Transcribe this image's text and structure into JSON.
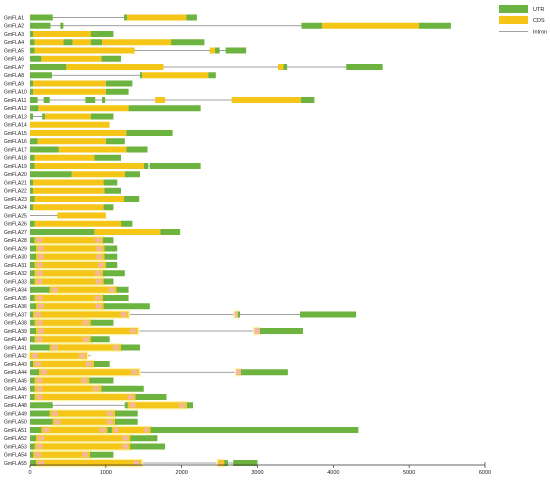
{
  "legend": {
    "utr_label": "UTR",
    "cds_label": "CDS",
    "intron_label": "Intron"
  },
  "colors": {
    "utr": "#6db33f",
    "cds": "#f5c518",
    "intron": "#808080",
    "domain_pink": "#f4b6a6",
    "domain_halo": "#fbf4a8"
  },
  "x_axis": {
    "min": 0,
    "max": 6000,
    "ticks": [
      0,
      1000,
      2000,
      3000,
      4000,
      5000,
      6000
    ],
    "tick_labels": [
      "0",
      "1000",
      "2000",
      "3000",
      "4000",
      "5000",
      "6000"
    ]
  },
  "genes": [
    {
      "name": "GmFLA1",
      "start": 0,
      "end": 2200,
      "utr": [
        [
          0,
          300
        ],
        [
          1240,
          1280
        ],
        [
          2060,
          2200
        ]
      ],
      "cds": [
        [
          1280,
          2060
        ]
      ],
      "domains": []
    },
    {
      "name": "GmFLA2",
      "start": 0,
      "end": 5550,
      "utr": [
        [
          0,
          270
        ],
        [
          400,
          440
        ],
        [
          3580,
          3850
        ],
        [
          5130,
          5550
        ]
      ],
      "cds": [
        [
          3850,
          5130
        ]
      ],
      "domains": []
    },
    {
      "name": "GmFLA3",
      "start": 0,
      "end": 1100,
      "utr": [
        [
          0,
          40
        ],
        [
          800,
          1100
        ]
      ],
      "cds": [
        [
          40,
          800
        ]
      ],
      "domains": []
    },
    {
      "name": "GmFLA4",
      "start": 0,
      "end": 2300,
      "utr": [
        [
          0,
          60
        ],
        [
          440,
          560
        ],
        [
          800,
          950
        ],
        [
          1860,
          2300
        ]
      ],
      "cds": [
        [
          60,
          440
        ],
        [
          560,
          800
        ],
        [
          950,
          1860
        ]
      ],
      "domains": []
    },
    {
      "name": "GmFLA5",
      "start": 0,
      "end": 2850,
      "utr": [
        [
          0,
          60
        ],
        [
          2440,
          2500
        ],
        [
          2580,
          2850
        ]
      ],
      "cds": [
        [
          60,
          1380
        ],
        [
          2370,
          2440
        ]
      ],
      "domains": []
    },
    {
      "name": "GmFLA6",
      "start": 0,
      "end": 1200,
      "utr": [
        [
          0,
          150
        ],
        [
          940,
          1200
        ]
      ],
      "cds": [
        [
          150,
          940
        ]
      ],
      "domains": []
    },
    {
      "name": "GmFLA7",
      "start": 0,
      "end": 4650,
      "utr": [
        [
          0,
          480
        ],
        [
          3340,
          3390
        ],
        [
          4170,
          4650
        ]
      ],
      "cds": [
        [
          480,
          1760
        ],
        [
          3270,
          3340
        ]
      ],
      "domains": []
    },
    {
      "name": "GmFLA8",
      "start": 0,
      "end": 2450,
      "utr": [
        [
          0,
          290
        ],
        [
          1450,
          1480
        ],
        [
          2350,
          2450
        ]
      ],
      "cds": [
        [
          1480,
          2350
        ]
      ],
      "domains": []
    },
    {
      "name": "GmFLA9",
      "start": 0,
      "end": 1350,
      "utr": [
        [
          0,
          40
        ],
        [
          1000,
          1350
        ]
      ],
      "cds": [
        [
          40,
          1000
        ]
      ],
      "domains": []
    },
    {
      "name": "GmFLA10",
      "start": 0,
      "end": 1300,
      "utr": [
        [
          0,
          40
        ],
        [
          1000,
          1300
        ]
      ],
      "cds": [
        [
          40,
          1000
        ]
      ],
      "domains": []
    },
    {
      "name": "GmFLA11",
      "start": 0,
      "end": 3750,
      "utr": [
        [
          0,
          100
        ],
        [
          180,
          260
        ],
        [
          730,
          860
        ],
        [
          950,
          990
        ],
        [
          3570,
          3750
        ]
      ],
      "cds": [
        [
          1650,
          1780
        ],
        [
          2660,
          3570
        ]
      ],
      "domains": []
    },
    {
      "name": "GmFLA12",
      "start": 0,
      "end": 2250,
      "utr": [
        [
          0,
          110
        ],
        [
          1300,
          2250
        ]
      ],
      "cds": [
        [
          110,
          1300
        ]
      ],
      "domains": []
    },
    {
      "name": "GmFLA13",
      "start": 0,
      "end": 1100,
      "utr": [
        [
          0,
          40
        ],
        [
          160,
          200
        ],
        [
          800,
          1100
        ]
      ],
      "cds": [
        [
          200,
          800
        ]
      ],
      "domains": []
    },
    {
      "name": "GmFLA14",
      "start": 0,
      "end": 1050,
      "utr": [],
      "cds": [
        [
          0,
          1050
        ]
      ],
      "domains": []
    },
    {
      "name": "GmFLA15",
      "start": 0,
      "end": 1880,
      "utr": [
        [
          1270,
          1880
        ]
      ],
      "cds": [
        [
          0,
          1270
        ]
      ],
      "domains": []
    },
    {
      "name": "GmFLA16",
      "start": 0,
      "end": 1250,
      "utr": [
        [
          0,
          100
        ],
        [
          1000,
          1250
        ]
      ],
      "cds": [
        [
          100,
          1000
        ]
      ],
      "domains": []
    },
    {
      "name": "GmFLA17",
      "start": 0,
      "end": 1550,
      "utr": [
        [
          0,
          380
        ],
        [
          1270,
          1550
        ]
      ],
      "cds": [
        [
          380,
          1270
        ]
      ],
      "domains": []
    },
    {
      "name": "GmFLA18",
      "start": 0,
      "end": 1200,
      "utr": [
        [
          0,
          60
        ],
        [
          850,
          1200
        ]
      ],
      "cds": [
        [
          60,
          850
        ]
      ],
      "domains": []
    },
    {
      "name": "GmFLA19",
      "start": 0,
      "end": 2250,
      "utr": [
        [
          0,
          60
        ],
        [
          1500,
          1560
        ],
        [
          1580,
          2250
        ]
      ],
      "cds": [
        [
          60,
          1500
        ]
      ],
      "domains": []
    },
    {
      "name": "GmFLA20",
      "start": 0,
      "end": 1450,
      "utr": [
        [
          0,
          550
        ],
        [
          1250,
          1450
        ]
      ],
      "cds": [
        [
          550,
          1250
        ]
      ],
      "domains": []
    },
    {
      "name": "GmFLA21",
      "start": 0,
      "end": 1150,
      "utr": [
        [
          0,
          40
        ],
        [
          970,
          1150
        ]
      ],
      "cds": [
        [
          40,
          970
        ]
      ],
      "domains": []
    },
    {
      "name": "GmFLA22",
      "start": 0,
      "end": 1200,
      "utr": [
        [
          0,
          40
        ],
        [
          980,
          1200
        ]
      ],
      "cds": [
        [
          40,
          980
        ]
      ],
      "domains": []
    },
    {
      "name": "GmFLA23",
      "start": 0,
      "end": 1440,
      "utr": [
        [
          0,
          60
        ],
        [
          1240,
          1440
        ]
      ],
      "cds": [
        [
          60,
          1240
        ]
      ],
      "domains": []
    },
    {
      "name": "GmFLA24",
      "start": 0,
      "end": 1100,
      "utr": [
        [
          0,
          40
        ],
        [
          970,
          1100
        ]
      ],
      "cds": [
        [
          40,
          970
        ]
      ],
      "domains": []
    },
    {
      "name": "GmFLA25",
      "start": 0,
      "end": 1000,
      "utr": [],
      "cds": [
        [
          360,
          1000
        ]
      ],
      "domains": []
    },
    {
      "name": "GmFLA26",
      "start": 0,
      "end": 1350,
      "utr": [
        [
          0,
          60
        ],
        [
          1200,
          1350
        ]
      ],
      "cds": [
        [
          60,
          1200
        ]
      ],
      "domains": []
    },
    {
      "name": "GmFLA27",
      "start": 0,
      "end": 1980,
      "utr": [
        [
          0,
          850
        ],
        [
          1720,
          1980
        ]
      ],
      "cds": [
        [
          850,
          1720
        ]
      ],
      "domains": []
    },
    {
      "name": "GmFLA28",
      "start": 0,
      "end": 1100,
      "utr": [
        [
          0,
          60
        ],
        [
          960,
          1100
        ]
      ],
      "cds": [
        [
          60,
          960
        ]
      ],
      "domains": [
        [
          60,
          960
        ]
      ]
    },
    {
      "name": "GmFLA29",
      "start": 0,
      "end": 1150,
      "utr": [
        [
          0,
          80
        ],
        [
          980,
          1150
        ]
      ],
      "cds": [
        [
          80,
          980
        ]
      ],
      "domains": [
        [
          80,
          980
        ]
      ]
    },
    {
      "name": "GmFLA30",
      "start": 0,
      "end": 1150,
      "utr": [
        [
          0,
          80
        ],
        [
          980,
          1150
        ]
      ],
      "cds": [
        [
          80,
          980
        ]
      ],
      "domains": [
        [
          80,
          980
        ]
      ]
    },
    {
      "name": "GmFLA31",
      "start": 0,
      "end": 1150,
      "utr": [
        [
          0,
          60
        ],
        [
          1000,
          1150
        ]
      ],
      "cds": [
        [
          60,
          1000
        ]
      ],
      "domains": [
        [
          60,
          1000
        ]
      ]
    },
    {
      "name": "GmFLA32",
      "start": 0,
      "end": 1250,
      "utr": [
        [
          0,
          60
        ],
        [
          960,
          1250
        ]
      ],
      "cds": [
        [
          60,
          960
        ]
      ],
      "domains": [
        [
          60,
          960
        ]
      ]
    },
    {
      "name": "GmFLA33",
      "start": 0,
      "end": 1100,
      "utr": [
        [
          0,
          60
        ],
        [
          970,
          1100
        ]
      ],
      "cds": [
        [
          60,
          970
        ]
      ],
      "domains": [
        [
          60,
          970
        ]
      ]
    },
    {
      "name": "GmFLA34",
      "start": 0,
      "end": 1300,
      "utr": [
        [
          0,
          260
        ],
        [
          1140,
          1300
        ]
      ],
      "cds": [
        [
          260,
          1140
        ]
      ],
      "domains": [
        [
          260,
          1140
        ]
      ]
    },
    {
      "name": "GmFLA35",
      "start": 0,
      "end": 1300,
      "utr": [
        [
          0,
          60
        ],
        [
          960,
          1300
        ]
      ],
      "cds": [
        [
          60,
          960
        ]
      ],
      "domains": [
        [
          60,
          960
        ]
      ]
    },
    {
      "name": "GmFLA36",
      "start": 0,
      "end": 1580,
      "utr": [
        [
          0,
          80
        ],
        [
          970,
          1580
        ]
      ],
      "cds": [
        [
          80,
          970
        ]
      ],
      "domains": [
        [
          80,
          970
        ]
      ]
    },
    {
      "name": "GmFLA37",
      "start": 0,
      "end": 4300,
      "utr": [
        [
          0,
          40
        ],
        [
          2740,
          2770
        ],
        [
          3560,
          4300
        ]
      ],
      "cds": [
        [
          40,
          1300
        ],
        [
          2700,
          2740
        ]
      ],
      "domains": [
        [
          40,
          1300
        ],
        [
          2700,
          2740
        ]
      ]
    },
    {
      "name": "GmFLA38",
      "start": 0,
      "end": 1100,
      "utr": [
        [
          0,
          60
        ],
        [
          800,
          1100
        ]
      ],
      "cds": [
        [
          60,
          800
        ]
      ],
      "domains": [
        [
          60,
          800
        ]
      ]
    },
    {
      "name": "GmFLA39",
      "start": 0,
      "end": 3600,
      "utr": [
        [
          0,
          80
        ],
        [
          3030,
          3600
        ]
      ],
      "cds": [
        [
          80,
          1420
        ],
        [
          2960,
          3030
        ]
      ],
      "domains": [
        [
          80,
          1420
        ],
        [
          2960,
          3030
        ]
      ]
    },
    {
      "name": "GmFLA40",
      "start": 0,
      "end": 1050,
      "utr": [
        [
          0,
          60
        ],
        [
          800,
          1050
        ]
      ],
      "cds": [
        [
          60,
          800
        ]
      ],
      "domains": [
        [
          60,
          800
        ]
      ]
    },
    {
      "name": "GmFLA41",
      "start": 0,
      "end": 1450,
      "utr": [
        [
          0,
          260
        ],
        [
          1200,
          1450
        ]
      ],
      "cds": [
        [
          260,
          1200
        ]
      ],
      "domains": [
        [
          260,
          1200
        ]
      ]
    },
    {
      "name": "GmFLA42",
      "start": 0,
      "end": 800,
      "utr": [],
      "cds": [
        [
          0,
          750
        ]
      ],
      "domains": [
        [
          0,
          750
        ]
      ]
    },
    {
      "name": "GmFLA43",
      "start": 0,
      "end": 1050,
      "utr": [
        [
          0,
          40
        ],
        [
          840,
          1050
        ]
      ],
      "cds": [
        [
          40,
          840
        ]
      ],
      "domains": [
        [
          40,
          840
        ]
      ]
    },
    {
      "name": "GmFLA44",
      "start": 0,
      "end": 3400,
      "utr": [
        [
          0,
          120
        ],
        [
          2780,
          3400
        ]
      ],
      "cds": [
        [
          120,
          1440
        ],
        [
          2720,
          2780
        ]
      ],
      "domains": [
        [
          120,
          1440
        ],
        [
          2720,
          2780
        ]
      ]
    },
    {
      "name": "GmFLA45",
      "start": 0,
      "end": 1100,
      "utr": [
        [
          0,
          60
        ],
        [
          780,
          1100
        ]
      ],
      "cds": [
        [
          60,
          780
        ]
      ],
      "domains": [
        [
          60,
          780
        ]
      ]
    },
    {
      "name": "GmFLA46",
      "start": 0,
      "end": 1500,
      "utr": [
        [
          0,
          60
        ],
        [
          940,
          1500
        ]
      ],
      "cds": [
        [
          60,
          940
        ]
      ],
      "domains": [
        [
          60,
          940
        ]
      ]
    },
    {
      "name": "GmFLA47",
      "start": 0,
      "end": 1800,
      "utr": [
        [
          0,
          60
        ],
        [
          1390,
          1800
        ]
      ],
      "cds": [
        [
          60,
          1390
        ]
      ],
      "domains": [
        [
          60,
          1390
        ]
      ]
    },
    {
      "name": "GmFLA48",
      "start": 0,
      "end": 2150,
      "utr": [
        [
          0,
          300
        ],
        [
          1250,
          1290
        ],
        [
          2070,
          2150
        ]
      ],
      "cds": [
        [
          1290,
          2070
        ]
      ],
      "domains": [
        [
          1290,
          2070
        ]
      ]
    },
    {
      "name": "GmFLA49",
      "start": 0,
      "end": 1420,
      "utr": [
        [
          0,
          260
        ],
        [
          1120,
          1420
        ]
      ],
      "cds": [
        [
          260,
          1120
        ]
      ],
      "domains": [
        [
          260,
          1120
        ]
      ]
    },
    {
      "name": "GmFLA50",
      "start": 0,
      "end": 1420,
      "utr": [
        [
          0,
          300
        ],
        [
          1120,
          1420
        ]
      ],
      "cds": [
        [
          300,
          1120
        ]
      ],
      "domains": [
        [
          300,
          1120
        ]
      ]
    },
    {
      "name": "GmFLA51",
      "start": 0,
      "end": 4330,
      "utr": [
        [
          0,
          150
        ],
        [
          1020,
          1080
        ],
        [
          1590,
          4330
        ]
      ],
      "cds": [
        [
          150,
          1020
        ],
        [
          1080,
          1590
        ]
      ],
      "domains": [
        [
          150,
          1020
        ],
        [
          1080,
          1590
        ]
      ]
    },
    {
      "name": "GmFLA52",
      "start": 0,
      "end": 1680,
      "utr": [
        [
          0,
          80
        ],
        [
          1320,
          1680
        ]
      ],
      "cds": [
        [
          80,
          1320
        ]
      ],
      "domains": [
        [
          80,
          1320
        ]
      ]
    },
    {
      "name": "GmFLA53",
      "start": 0,
      "end": 1780,
      "utr": [
        [
          0,
          60
        ],
        [
          1320,
          1780
        ]
      ],
      "cds": [
        [
          60,
          1320
        ]
      ],
      "domains": [
        [
          60,
          1320
        ]
      ]
    },
    {
      "name": "GmFLA54",
      "start": 0,
      "end": 1100,
      "utr": [
        [
          0,
          40
        ],
        [
          790,
          1100
        ]
      ],
      "cds": [
        [
          40,
          790
        ]
      ],
      "domains": [
        [
          40,
          790
        ]
      ]
    },
    {
      "name": "GmFLA55",
      "start": 0,
      "end": 3000,
      "utr": [
        [
          0,
          80
        ],
        [
          2560,
          2610
        ],
        [
          2680,
          3000
        ]
      ],
      "cds": [
        [
          80,
          1470
        ],
        [
          2480,
          2560
        ]
      ],
      "domains": [
        [
          80,
          1470
        ],
        [
          2480,
          2560
        ]
      ]
    }
  ]
}
